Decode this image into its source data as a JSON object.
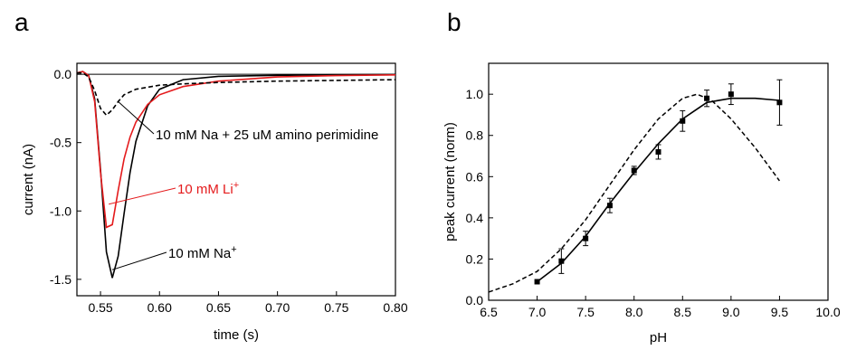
{
  "figure": {
    "panels": [
      {
        "letter": "a"
      },
      {
        "letter": "b"
      }
    ]
  },
  "chart_data": [
    {
      "type": "line",
      "panel": "a",
      "xlabel": "time (s)",
      "ylabel": "current (nA)",
      "xlim": [
        0.53,
        0.8
      ],
      "ylim": [
        -1.62,
        0.08
      ],
      "xticks": [
        0.55,
        0.6,
        0.65,
        0.7,
        0.75,
        0.8
      ],
      "xtick_labels": [
        "0.55",
        "0.60",
        "0.65",
        "0.70",
        "0.75",
        "0.80"
      ],
      "yticks": [
        0.0,
        -0.5,
        -1.0,
        -1.5
      ],
      "ytick_labels": [
        "0.0",
        "-0.5",
        "-1.0",
        "-1.5"
      ],
      "zero_line": true,
      "series": [
        {
          "name": "10 mM Na⁺",
          "color": "#000000",
          "dash": "solid",
          "x": [
            0.53,
            0.535,
            0.54,
            0.545,
            0.55,
            0.555,
            0.56,
            0.565,
            0.57,
            0.575,
            0.58,
            0.59,
            0.6,
            0.62,
            0.65,
            0.7,
            0.75,
            0.8
          ],
          "y": [
            0.01,
            0.02,
            -0.01,
            -0.18,
            -0.7,
            -1.3,
            -1.49,
            -1.33,
            -1.02,
            -0.72,
            -0.49,
            -0.23,
            -0.11,
            -0.04,
            -0.015,
            -0.008,
            -0.004,
            -0.002
          ]
        },
        {
          "name": "10 mM Li⁺",
          "color": "#e41a1c",
          "dash": "solid",
          "x": [
            0.53,
            0.535,
            0.54,
            0.545,
            0.55,
            0.555,
            0.56,
            0.565,
            0.57,
            0.575,
            0.58,
            0.59,
            0.6,
            0.62,
            0.65,
            0.7,
            0.75,
            0.8
          ],
          "y": [
            0.01,
            0.02,
            -0.01,
            -0.2,
            -0.72,
            -1.12,
            -1.1,
            -0.85,
            -0.62,
            -0.46,
            -0.35,
            -0.22,
            -0.15,
            -0.09,
            -0.05,
            -0.02,
            -0.01,
            -0.005
          ]
        },
        {
          "name": "10 mM Na + 25 uM amino perimidine",
          "color": "#000000",
          "dash": "dashed",
          "x": [
            0.53,
            0.535,
            0.54,
            0.545,
            0.55,
            0.555,
            0.56,
            0.565,
            0.57,
            0.58,
            0.6,
            0.62,
            0.65,
            0.7,
            0.75,
            0.8
          ],
          "y": [
            0.01,
            0.01,
            -0.02,
            -0.12,
            -0.25,
            -0.3,
            -0.26,
            -0.2,
            -0.15,
            -0.11,
            -0.08,
            -0.07,
            -0.06,
            -0.05,
            -0.045,
            -0.04
          ]
        }
      ],
      "annotations": [
        {
          "text": "10 mM Na + 25 uM amino perimidine",
          "color": "#000000",
          "x": 0.565,
          "y": -0.2
        },
        {
          "text": "10 mM Li",
          "sup": "+",
          "color": "#e41a1c",
          "x": 0.557,
          "y": -0.95
        },
        {
          "text": "10 mM Na",
          "sup": "+",
          "color": "#000000",
          "x": 0.56,
          "y": -1.43
        }
      ]
    },
    {
      "type": "scatter",
      "panel": "b",
      "xlabel": "pH",
      "ylabel": "peak current (norm)",
      "xlim": [
        6.5,
        10.0
      ],
      "ylim": [
        0.0,
        1.15
      ],
      "xticks": [
        6.5,
        7.0,
        7.5,
        8.0,
        8.5,
        9.0,
        9.5,
        10.0
      ],
      "xtick_labels": [
        "6.5",
        "7.0",
        "7.5",
        "8.0",
        "8.5",
        "9.0",
        "9.5",
        "10.0"
      ],
      "yticks": [
        0.0,
        0.2,
        0.4,
        0.6,
        0.8,
        1.0
      ],
      "ytick_labels": [
        "0.0",
        "0.2",
        "0.4",
        "0.6",
        "0.8",
        "1.0"
      ],
      "points": {
        "x": [
          7.0,
          7.25,
          7.5,
          7.75,
          8.0,
          8.25,
          8.5,
          8.75,
          9.0,
          9.5
        ],
        "y": [
          0.09,
          0.19,
          0.3,
          0.46,
          0.63,
          0.72,
          0.87,
          0.98,
          1.0,
          0.96
        ],
        "err": [
          0.0,
          0.06,
          0.035,
          0.035,
          0.02,
          0.035,
          0.05,
          0.04,
          0.05,
          0.11
        ]
      },
      "fit_line": {
        "dash": "solid",
        "x": [
          7.0,
          7.25,
          7.5,
          7.75,
          8.0,
          8.25,
          8.5,
          8.75,
          9.0,
          9.25,
          9.5
        ],
        "y": [
          0.09,
          0.18,
          0.31,
          0.47,
          0.62,
          0.76,
          0.88,
          0.96,
          0.98,
          0.98,
          0.97
        ]
      },
      "dashed_line": {
        "dash": "dashed",
        "x": [
          6.5,
          6.75,
          7.0,
          7.25,
          7.5,
          7.75,
          8.0,
          8.25,
          8.5,
          8.65,
          8.8,
          9.0,
          9.25,
          9.5
        ],
        "y": [
          0.04,
          0.08,
          0.14,
          0.25,
          0.39,
          0.56,
          0.73,
          0.88,
          0.98,
          1.0,
          0.97,
          0.88,
          0.74,
          0.58
        ]
      }
    }
  ]
}
